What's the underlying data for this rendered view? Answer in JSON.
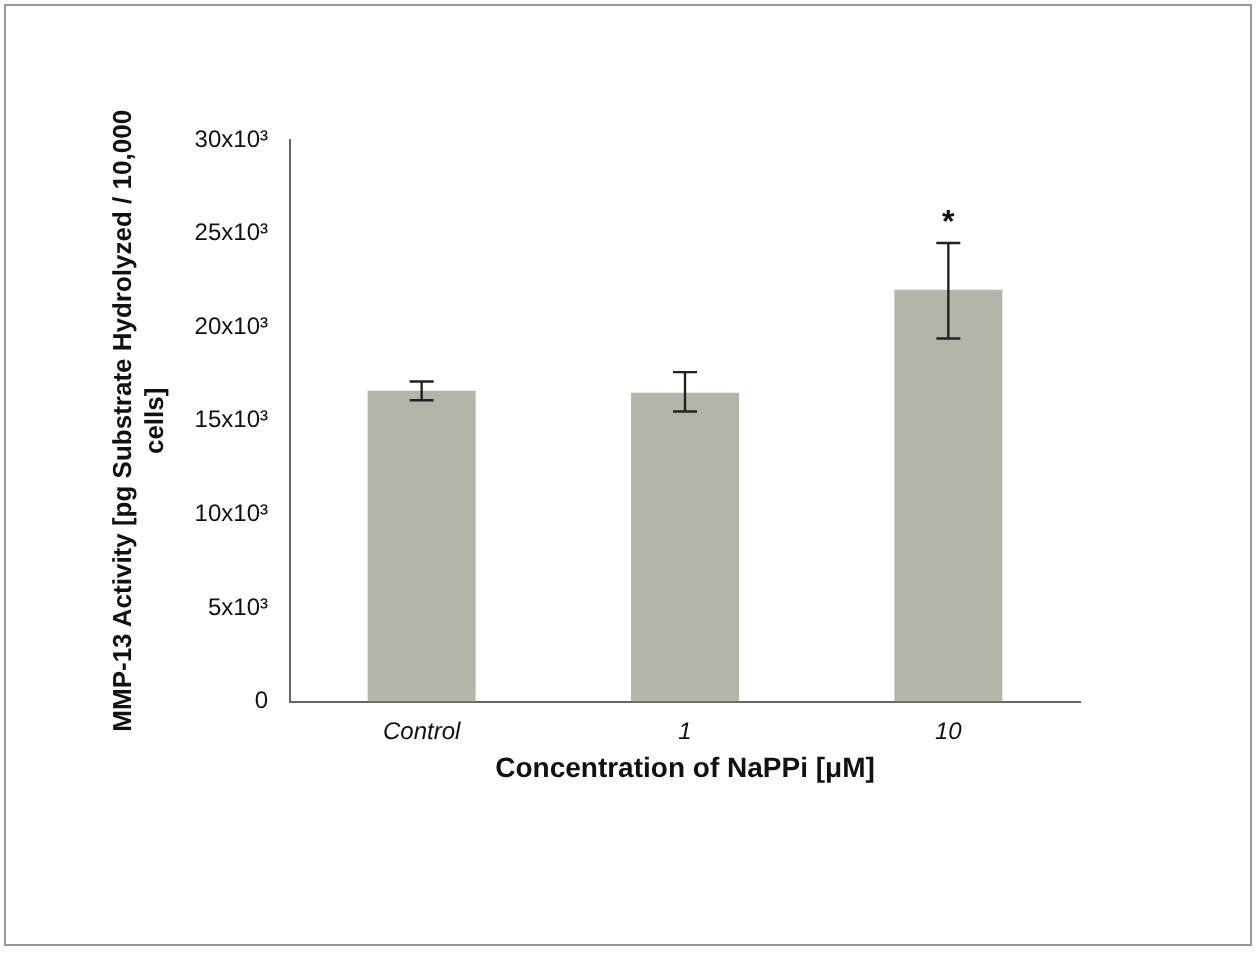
{
  "chart_data": {
    "type": "bar",
    "xlabel": "Concentration of NaPPi [μM]",
    "ylabel": "MMP-13 Activity [pg Substrate Hydrolyzed / 10,000 cells]",
    "categories": [
      "Control",
      "1",
      "10"
    ],
    "values": [
      16600,
      16500,
      22000
    ],
    "errors": [
      [
        16100,
        17100
      ],
      [
        15500,
        17600
      ],
      [
        19400,
        24500
      ]
    ],
    "color": "#b4b4a8",
    "ylim": [
      0,
      30000
    ],
    "yticks": [
      0,
      {
        "value": 5000,
        "label": "5x10³"
      },
      {
        "value": 10000,
        "label": "10x10³"
      },
      {
        "value": 15000,
        "label": "15x10³"
      },
      {
        "value": 20000,
        "label": "20x10³"
      },
      {
        "value": 25000,
        "label": "25x10³"
      },
      {
        "value": 30000,
        "label": "30x10³"
      }
    ],
    "annotations": [
      "*"
    ],
    "grid": false,
    "legend": false
  }
}
